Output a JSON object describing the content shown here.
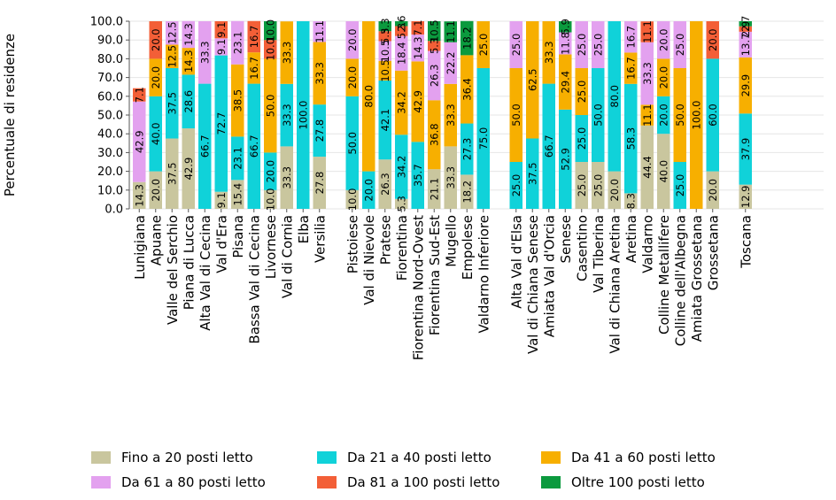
{
  "chart_data": {
    "type": "bar",
    "stacked": true,
    "ylabel": "Percentuale di residenze",
    "ylim": [
      0,
      100
    ],
    "yticks": [
      "0.0",
      "10.0",
      "20.0",
      "30.0",
      "40.0",
      "50.0",
      "60.0",
      "70.0",
      "80.0",
      "90.0",
      "100.0"
    ],
    "legend_position": "bottom",
    "groups": [
      {
        "categories": [
          "Lunigiana",
          "Apuane",
          "Valle del Serchio",
          "Piana di Lucca",
          "Alta Val di Cecina",
          "Val d'Era",
          "Pisana",
          "Bassa Val di Cecina",
          "Livornese",
          "Val di Cornia",
          "Elba",
          "Versilia"
        ],
        "segments": [
          [
            [
              0,
              14.3
            ],
            [
              3,
              42.9
            ],
            [
              4,
              7.1
            ]
          ],
          [
            [
              0,
              20.0
            ],
            [
              1,
              40.0
            ],
            [
              2,
              20.0
            ],
            [
              4,
              20.0
            ]
          ],
          [
            [
              0,
              37.5
            ],
            [
              1,
              37.5
            ],
            [
              2,
              12.5
            ],
            [
              3,
              12.5
            ]
          ],
          [
            [
              0,
              42.9
            ],
            [
              1,
              28.6
            ],
            [
              2,
              14.3
            ],
            [
              3,
              14.3
            ]
          ],
          [
            [
              1,
              66.7
            ],
            [
              3,
              33.3
            ]
          ],
          [
            [
              0,
              9.1
            ],
            [
              1,
              72.7
            ],
            [
              3,
              9.1
            ],
            [
              4,
              9.1
            ]
          ],
          [
            [
              0,
              15.4
            ],
            [
              1,
              23.1
            ],
            [
              2,
              38.5
            ],
            [
              3,
              23.1
            ]
          ],
          [
            [
              1,
              66.7
            ],
            [
              2,
              16.7
            ],
            [
              4,
              16.7
            ]
          ],
          [
            [
              0,
              10.0
            ],
            [
              1,
              20.0
            ],
            [
              2,
              50.0
            ],
            [
              4,
              10.0
            ],
            [
              5,
              10.0
            ]
          ],
          [
            [
              0,
              33.3
            ],
            [
              1,
              33.3
            ],
            [
              2,
              33.3
            ]
          ],
          [
            [
              1,
              100.0
            ]
          ],
          [
            [
              0,
              27.8
            ],
            [
              1,
              27.8
            ],
            [
              2,
              33.3
            ],
            [
              3,
              11.1
            ]
          ]
        ]
      },
      {
        "categories": [
          "Pistoiese",
          "Val di Nievole",
          "Pratese",
          "Fiorentina",
          "Fiorentina Nord-Ovest",
          "Fiorentina Sud-Est",
          "Mugello",
          "Empolese",
          "Valdarno Inferiore"
        ],
        "segments": [
          [
            [
              0,
              10.0
            ],
            [
              1,
              50.0
            ],
            [
              2,
              20.0
            ],
            [
              3,
              20.0
            ]
          ],
          [
            [
              1,
              20.0
            ],
            [
              2,
              80.0
            ]
          ],
          [
            [
              0,
              26.3
            ],
            [
              1,
              42.1
            ],
            [
              2,
              10.5
            ],
            [
              3,
              10.5
            ],
            [
              4,
              5.3
            ],
            [
              5,
              5.3
            ]
          ],
          [
            [
              0,
              5.3
            ],
            [
              1,
              34.2
            ],
            [
              2,
              34.2
            ],
            [
              3,
              18.4
            ],
            [
              4,
              5.3
            ],
            [
              5,
              2.6
            ]
          ],
          [
            [
              1,
              35.7
            ],
            [
              2,
              42.9
            ],
            [
              3,
              14.3
            ],
            [
              4,
              7.1
            ]
          ],
          [
            [
              0,
              21.1
            ],
            [
              2,
              36.8
            ],
            [
              3,
              26.3
            ],
            [
              4,
              5.3
            ],
            [
              5,
              10.5
            ]
          ],
          [
            [
              0,
              33.3
            ],
            [
              2,
              33.3
            ],
            [
              3,
              22.2
            ],
            [
              5,
              11.1
            ]
          ],
          [
            [
              0,
              18.2
            ],
            [
              1,
              27.3
            ],
            [
              2,
              36.4
            ],
            [
              5,
              18.2
            ]
          ],
          [
            [
              1,
              75.0
            ],
            [
              2,
              25.0
            ]
          ]
        ]
      },
      {
        "categories": [
          "Alta Val d'Elsa",
          "Val di Chiana Senese",
          "Amiata Val d'Orcia",
          "Senese",
          "Casentino",
          "Val Tiberina",
          "Val di Chiana Aretina",
          "Aretina",
          "Valdarno",
          "Colline Metallifere",
          "Colline dell'Albegna",
          "Amiata Grossetana",
          "Grossetana"
        ],
        "segments": [
          [
            [
              1,
              25.0
            ],
            [
              2,
              50.0
            ],
            [
              3,
              25.0
            ]
          ],
          [
            [
              1,
              37.5
            ],
            [
              2,
              62.5
            ]
          ],
          [
            [
              1,
              66.7
            ],
            [
              2,
              33.3
            ]
          ],
          [
            [
              1,
              52.9
            ],
            [
              2,
              29.4
            ],
            [
              3,
              11.8
            ],
            [
              5,
              5.9
            ]
          ],
          [
            [
              0,
              25.0
            ],
            [
              1,
              25.0
            ],
            [
              2,
              25.0
            ],
            [
              3,
              25.0
            ]
          ],
          [
            [
              0,
              25.0
            ],
            [
              1,
              50.0
            ],
            [
              3,
              25.0
            ]
          ],
          [
            [
              0,
              20.0
            ],
            [
              1,
              80.0
            ]
          ],
          [
            [
              0,
              8.3
            ],
            [
              1,
              58.3
            ],
            [
              2,
              16.7
            ],
            [
              3,
              16.7
            ]
          ],
          [
            [
              0,
              44.4
            ],
            [
              2,
              11.1
            ],
            [
              3,
              33.3
            ],
            [
              4,
              11.1
            ]
          ],
          [
            [
              0,
              40.0
            ],
            [
              1,
              20.0
            ],
            [
              2,
              20.0
            ],
            [
              3,
              20.0
            ]
          ],
          [
            [
              1,
              25.0
            ],
            [
              2,
              50.0
            ],
            [
              3,
              25.0
            ]
          ],
          [
            [
              2,
              100.0
            ]
          ],
          [
            [
              0,
              20.0
            ],
            [
              1,
              60.0
            ],
            [
              4,
              20.0
            ]
          ]
        ]
      },
      {
        "categories": [
          "Toscana"
        ],
        "segments": [
          [
            [
              0,
              12.9
            ],
            [
              1,
              37.9
            ],
            [
              2,
              29.9
            ],
            [
              3,
              13.7
            ],
            [
              4,
              2.9
            ],
            [
              5,
              2.7
            ]
          ]
        ]
      }
    ],
    "segment_labels": {
      "Fiorentina Sud-Est": [
        "21.1",
        "36.8",
        "26.3",
        "5.3",
        "10.5"
      ],
      "Toscana": [
        "12.9",
        "37.9",
        "29.9",
        "13.7",
        "2.9",
        "2.7"
      ]
    },
    "series": [
      {
        "name": "Fino a 20 posti letto",
        "color": "#c9c69e"
      },
      {
        "name": "Da 21 a 40 posti letto",
        "color": "#10d2d9"
      },
      {
        "name": "Da 41 a 60 posti letto",
        "color": "#f7af00"
      },
      {
        "name": "Da 61 a 80 posti letto",
        "color": "#e3a1ef"
      },
      {
        "name": "Da 81 a 100 posti letto",
        "color": "#f35f37"
      },
      {
        "name": "Oltre 100 posti letto",
        "color": "#0b9a3e"
      }
    ]
  }
}
